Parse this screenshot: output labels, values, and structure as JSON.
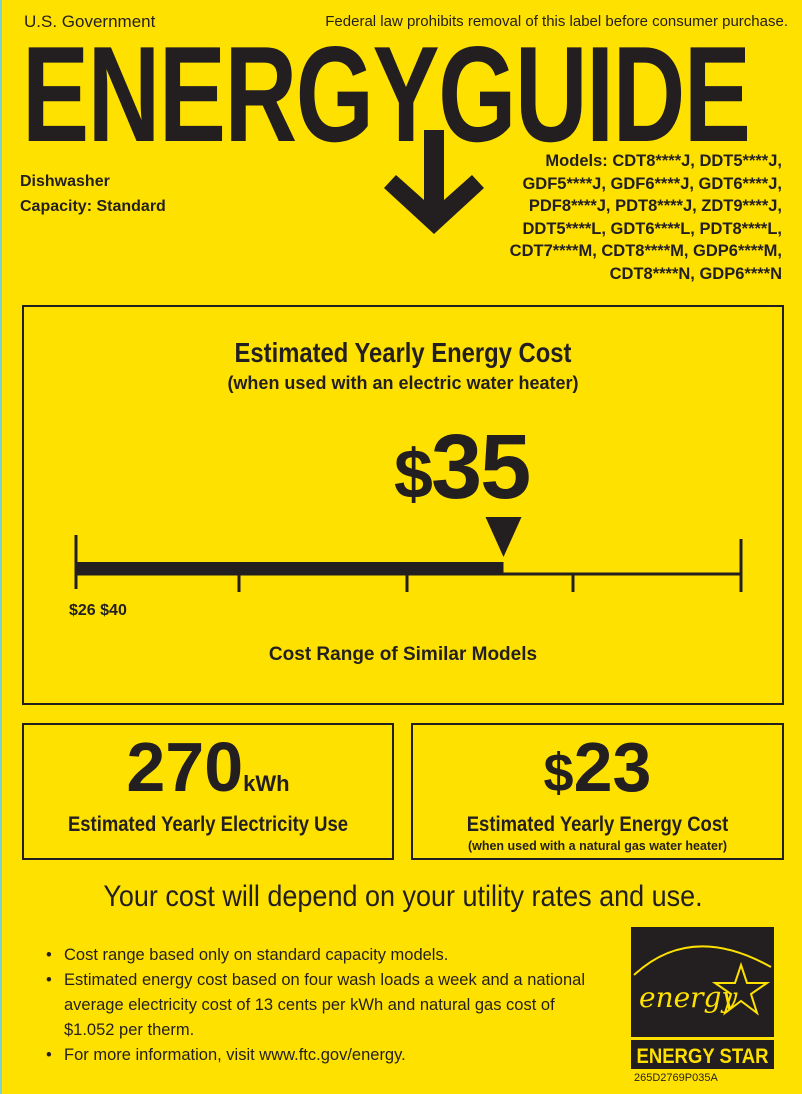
{
  "header": {
    "gov": "U.S. Government",
    "law": "Federal law prohibits removal of this label before consumer purchase.",
    "wordmark": "ENERGYGUIDE"
  },
  "product": {
    "type": "Dishwasher",
    "capacity": "Capacity: Standard"
  },
  "models": [
    "Models: CDT8****J, DDT5****J,",
    "GDF5****J, GDF6****J, GDT6****J,",
    "PDF8****J, PDT8****J, ZDT9****J,",
    "DDT5****L, GDT6****L, PDT8****L,",
    "CDT7****M, CDT8****M, GDP6****M,",
    "CDT8****N, GDP6****N"
  ],
  "main": {
    "title": "Estimated Yearly Energy Cost",
    "subtitle": "(when used with an electric water heater)",
    "dollar": "$",
    "value": "35",
    "range_labels": "$26 $40",
    "range_caption": "Cost Range of Similar Models",
    "range_min": 26,
    "range_max": 40,
    "marker_value": 35
  },
  "electricity": {
    "value": "270",
    "unit": "kWh",
    "label": "Estimated Yearly Electricity Use"
  },
  "gas": {
    "dollar": "$",
    "value": "23",
    "label": "Estimated Yearly Energy Cost",
    "sublabel": "(when used with a natural gas water heater)"
  },
  "depend": "Your cost will depend on your utility rates and use.",
  "bullets": [
    "Cost range based only on standard capacity models.",
    "Estimated energy cost based on four wash loads a week and a national average electricity cost of 13 cents per kWh and natural gas cost of $1.052 per therm.",
    "For more information, visit www.ftc.gov/energy."
  ],
  "energy_star": {
    "script": "energy",
    "label": "ENERGY STAR"
  },
  "code": "265D2769P035A",
  "colors": {
    "background": "#FFE100",
    "ink": "#231f20"
  }
}
